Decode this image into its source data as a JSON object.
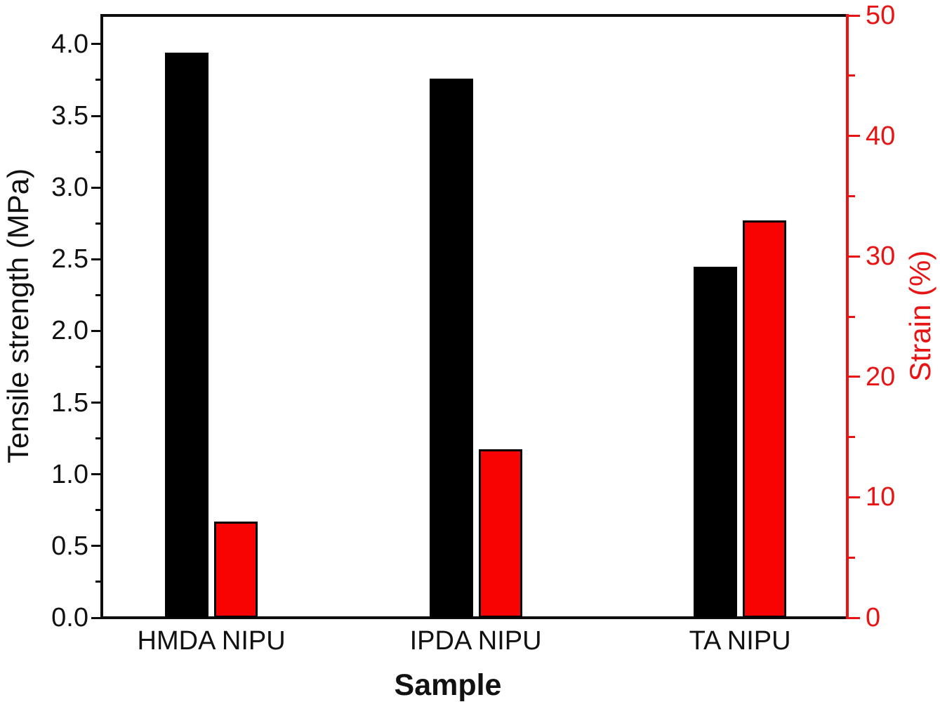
{
  "chart_data": {
    "type": "bar",
    "title": "",
    "xlabel": "Sample",
    "categories": [
      "HMDA NIPU",
      "IPDA NIPU",
      "TA NIPU"
    ],
    "series": [
      {
        "name": "Tensile strength",
        "axis": "left",
        "color": "#000000",
        "values": [
          3.94,
          3.76,
          2.45
        ]
      },
      {
        "name": "Strain",
        "axis": "right",
        "color": "#f80202",
        "values": [
          8,
          14,
          33
        ]
      }
    ],
    "y_left": {
      "label": "Tensile strength (MPa)",
      "color": "#111111",
      "min": 0,
      "max": 4.2,
      "major_step": 0.5,
      "minor_step": 0.25,
      "ticks": [
        "0.0",
        "0.5",
        "1.0",
        "1.5",
        "2.0",
        "2.5",
        "3.0",
        "3.5",
        "4.0"
      ]
    },
    "y_right": {
      "label": "Strain (%)",
      "color": "#e81313",
      "min": 0,
      "max": 50,
      "major_step": 10,
      "minor_step": 5,
      "ticks": [
        "0",
        "10",
        "20",
        "30",
        "40",
        "50"
      ]
    },
    "grid": false,
    "legend": false
  }
}
